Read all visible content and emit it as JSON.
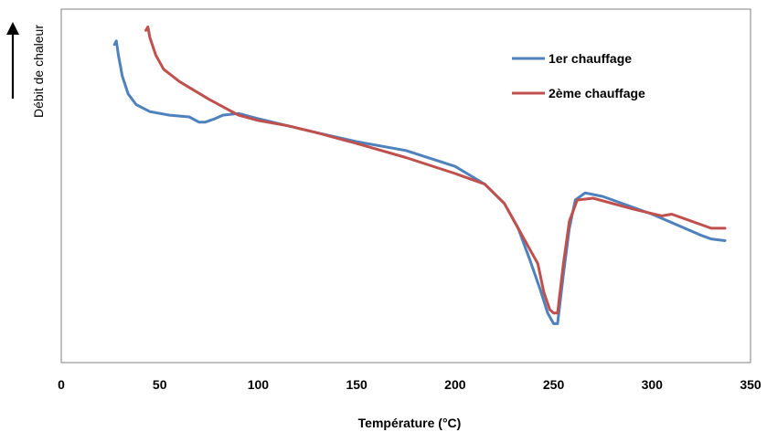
{
  "chart_data": {
    "type": "line",
    "title": "",
    "xlabel": "Température (°C)",
    "ylabel": "Débit de chaleur",
    "xlim": [
      0,
      350
    ],
    "ylim": [
      0,
      100
    ],
    "x_ticks": [
      0,
      50,
      100,
      150,
      200,
      250,
      300,
      350
    ],
    "y_ticks_shown": false,
    "grid": false,
    "legend_position": "top-right",
    "series": [
      {
        "name": "1er chauffage",
        "color": "#4F81BD",
        "points": [
          [
            27,
            90
          ],
          [
            28,
            91
          ],
          [
            29,
            87
          ],
          [
            31,
            81
          ],
          [
            34,
            76
          ],
          [
            38,
            73
          ],
          [
            45,
            71
          ],
          [
            55,
            70
          ],
          [
            65,
            69.5
          ],
          [
            70,
            68
          ],
          [
            73,
            68
          ],
          [
            78,
            69
          ],
          [
            82,
            70
          ],
          [
            90,
            70.5
          ],
          [
            100,
            69
          ],
          [
            115,
            67
          ],
          [
            130,
            65
          ],
          [
            150,
            62.5
          ],
          [
            175,
            60
          ],
          [
            200,
            55.5
          ],
          [
            215,
            50.5
          ],
          [
            225,
            45
          ],
          [
            232,
            38
          ],
          [
            238,
            29
          ],
          [
            243,
            21
          ],
          [
            247,
            14
          ],
          [
            250,
            11
          ],
          [
            252,
            11
          ],
          [
            255,
            25
          ],
          [
            258,
            38
          ],
          [
            261,
            46
          ],
          [
            266,
            48
          ],
          [
            275,
            47
          ],
          [
            300,
            42
          ],
          [
            325,
            36
          ],
          [
            330,
            35
          ],
          [
            337,
            34.5
          ]
        ]
      },
      {
        "name": "2ème chauffage",
        "color": "#C0504D",
        "points": [
          [
            43,
            94
          ],
          [
            44,
            95
          ],
          [
            45,
            92
          ],
          [
            48,
            87
          ],
          [
            52,
            83
          ],
          [
            60,
            79.5
          ],
          [
            75,
            74.5
          ],
          [
            90,
            70
          ],
          [
            100,
            68.5
          ],
          [
            115,
            67
          ],
          [
            130,
            65
          ],
          [
            150,
            62
          ],
          [
            175,
            58
          ],
          [
            200,
            53.5
          ],
          [
            215,
            50.5
          ],
          [
            225,
            45
          ],
          [
            232,
            38
          ],
          [
            238,
            32
          ],
          [
            242,
            28
          ],
          [
            245,
            20
          ],
          [
            248,
            15
          ],
          [
            250,
            14
          ],
          [
            252,
            14
          ],
          [
            255,
            28
          ],
          [
            258,
            40
          ],
          [
            262,
            46
          ],
          [
            270,
            46.5
          ],
          [
            290,
            43.5
          ],
          [
            305,
            41.5
          ],
          [
            310,
            42
          ],
          [
            320,
            40
          ],
          [
            330,
            38
          ],
          [
            337,
            38
          ]
        ]
      }
    ]
  }
}
